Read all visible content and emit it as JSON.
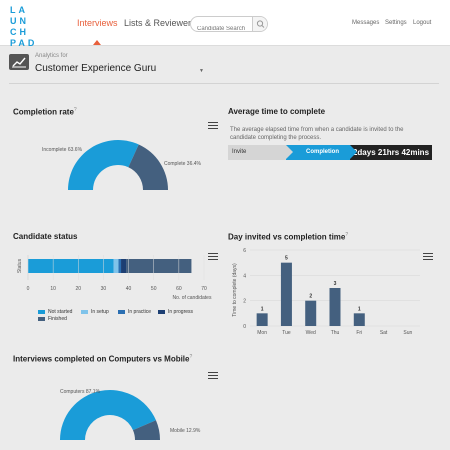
{
  "logo": [
    "LA",
    "UN",
    "CH",
    "PAD"
  ],
  "nav": {
    "interviews": "Interviews",
    "lists": "Lists & Reviewers"
  },
  "search": {
    "placeholder": "Candidate Search"
  },
  "top_links": {
    "messages": "Messages",
    "settings": "Settings",
    "logout": "Logout"
  },
  "analytics": {
    "for_label": "Analytics for",
    "selected": "Customer Experience Guru",
    "dropdown_icon": "caret-down-icon"
  },
  "completion": {
    "title": "Completion rate",
    "incomplete_label": "Incomplete 63.6%",
    "complete_label": "Complete 36.4%"
  },
  "avg_time": {
    "title": "Average time to complete",
    "description": "The average elapsed time from when a candidate is invited to the candidate completing the process.",
    "stage_invite": "Invite",
    "stage_completion": "Completion",
    "duration": "2days 21hrs 42mins"
  },
  "status": {
    "title": "Candidate status",
    "ylabel": "Status",
    "xlabel": "No. of candidates",
    "legend": {
      "not_started": "Not started",
      "in_setup": "In setup",
      "in_practice": "In practice",
      "in_progress": "In progress",
      "finished": "Finished"
    }
  },
  "days": {
    "title": "Day invited vs completion time",
    "ylabel": "Time to complete (days)"
  },
  "devices": {
    "title": "Interviews completed on Computers vs Mobile",
    "computers_label": "Computers 87.1%",
    "mobile_label": "Mobile 12.9%"
  },
  "colors": {
    "accent": "#1a9cd8",
    "nav_active": "#e8603c",
    "dark_slate": "#44607f"
  },
  "chart_data": [
    {
      "type": "pie",
      "title": "Completion rate",
      "categories": [
        "Incomplete",
        "Complete"
      ],
      "values": [
        63.6,
        36.4
      ],
      "colors": [
        "#1a9cd8",
        "#44607f"
      ]
    },
    {
      "type": "bar",
      "title": "Candidate status",
      "orientation": "horizontal",
      "stacked": true,
      "xlabel": "No. of candidates",
      "ylabel": "Status",
      "xlim": [
        0,
        70
      ],
      "xticks": [
        0,
        10,
        20,
        30,
        40,
        50,
        60,
        70
      ],
      "series": [
        {
          "name": "Not started",
          "values": [
            34
          ],
          "color": "#1a9cd8"
        },
        {
          "name": "In setup",
          "values": [
            2
          ],
          "color": "#7fc3ea"
        },
        {
          "name": "In practice",
          "values": [
            1
          ],
          "color": "#2b6fb2"
        },
        {
          "name": "In progress",
          "values": [
            2
          ],
          "color": "#1d3f73"
        },
        {
          "name": "Finished",
          "values": [
            26
          ],
          "color": "#44607f"
        }
      ]
    },
    {
      "type": "bar",
      "title": "Day invited vs completion time",
      "ylabel": "Time to complete (days)",
      "categories": [
        "Mon",
        "Tue",
        "Wed",
        "Thu",
        "Fri",
        "Sat",
        "Sun"
      ],
      "values": [
        1,
        5,
        2,
        3,
        1,
        0,
        0
      ],
      "data_labels": [
        "1",
        "5",
        "2",
        "3",
        "1",
        "",
        ""
      ],
      "ylim": [
        0,
        6
      ],
      "yticks": [
        0,
        2,
        4,
        6
      ],
      "color": "#44607f"
    },
    {
      "type": "pie",
      "title": "Interviews completed on Computers vs Mobile",
      "categories": [
        "Computers",
        "Mobile"
      ],
      "values": [
        87.1,
        12.9
      ],
      "colors": [
        "#1a9cd8",
        "#44607f"
      ]
    }
  ]
}
